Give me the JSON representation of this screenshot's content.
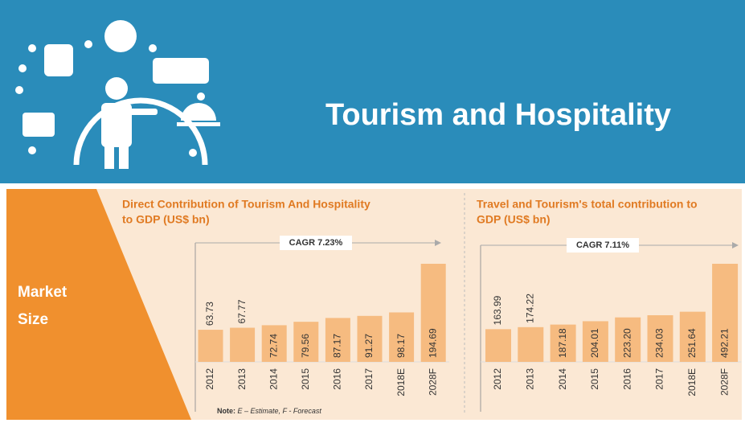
{
  "header": {
    "title": "Tourism and Hospitality"
  },
  "section_label": [
    "Market",
    "Size"
  ],
  "note": {
    "label": "Note:",
    "text": "E – Estimate, F - Forecast"
  },
  "chart_data": [
    {
      "type": "bar",
      "title": [
        "Direct Contribution of Tourism And Hospitality",
        "to GDP (US$ bn)"
      ],
      "annotation": "CAGR 7.23%",
      "categories": [
        "2012",
        "2013",
        "2014",
        "2015",
        "2016",
        "2017",
        "2018E",
        "2028F"
      ],
      "values": [
        63.73,
        67.77,
        72.74,
        79.56,
        87.17,
        91.27,
        98.17,
        194.69
      ],
      "color": "#f6bb80"
    },
    {
      "type": "bar",
      "title": [
        "Travel and Tourism's total contribution to",
        "GDP (US$ bn)"
      ],
      "annotation": "CAGR 7.11%",
      "categories": [
        "2012",
        "2013",
        "2014",
        "2015",
        "2016",
        "2017",
        "2018E",
        "2028F"
      ],
      "values": [
        163.99,
        174.22,
        187.18,
        204.01,
        223.2,
        234.03,
        251.64,
        492.21
      ],
      "value_labels": [
        "163.99",
        "174.22",
        "187.18",
        "204.01",
        "223.20",
        "234.03",
        "251.64",
        "492.21"
      ],
      "color": "#f6bb80"
    }
  ]
}
